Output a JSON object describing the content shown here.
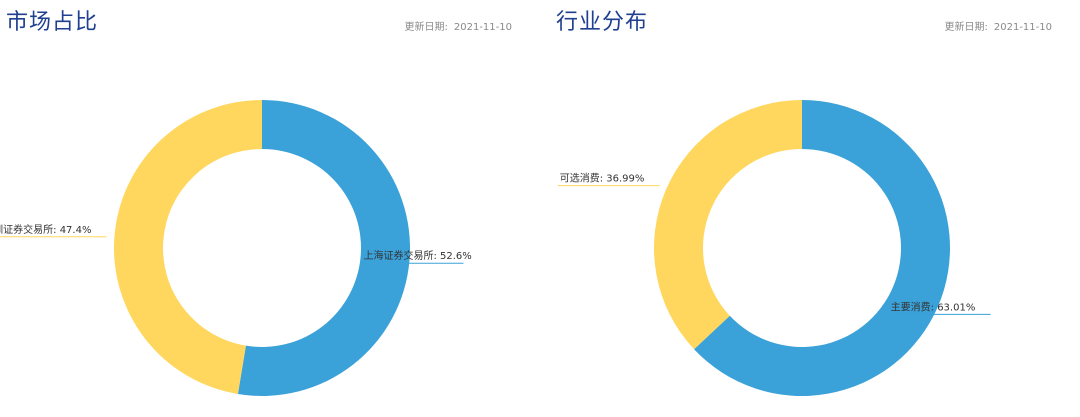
{
  "panels": [
    {
      "title": "市场占比",
      "date_label": "更新日期:",
      "date_value": "2021-11-10"
    },
    {
      "title": "行业分布",
      "date_label": "更新日期:",
      "date_value": "2021-11-10"
    }
  ],
  "colors": {
    "blue": "#3aa1d9",
    "yellow": "#ffd75e",
    "title": "#1f3f8f"
  },
  "chart_data": [
    {
      "type": "pie",
      "variant": "donut",
      "title": "市场占比",
      "slices": [
        {
          "label": "上海证券交易所",
          "value": 52.6,
          "value_text": "52.6%",
          "color": "#3aa1d9"
        },
        {
          "label": "深圳证券交易所",
          "value": 47.4,
          "value_text": "47.4%",
          "color": "#ffd75e"
        }
      ]
    },
    {
      "type": "pie",
      "variant": "donut",
      "title": "行业分布",
      "slices": [
        {
          "label": "主要消费",
          "value": 63.01,
          "value_text": "63.01%",
          "color": "#3aa1d9"
        },
        {
          "label": "可选消费",
          "value": 36.99,
          "value_text": "36.99%",
          "color": "#ffd75e"
        }
      ]
    }
  ]
}
